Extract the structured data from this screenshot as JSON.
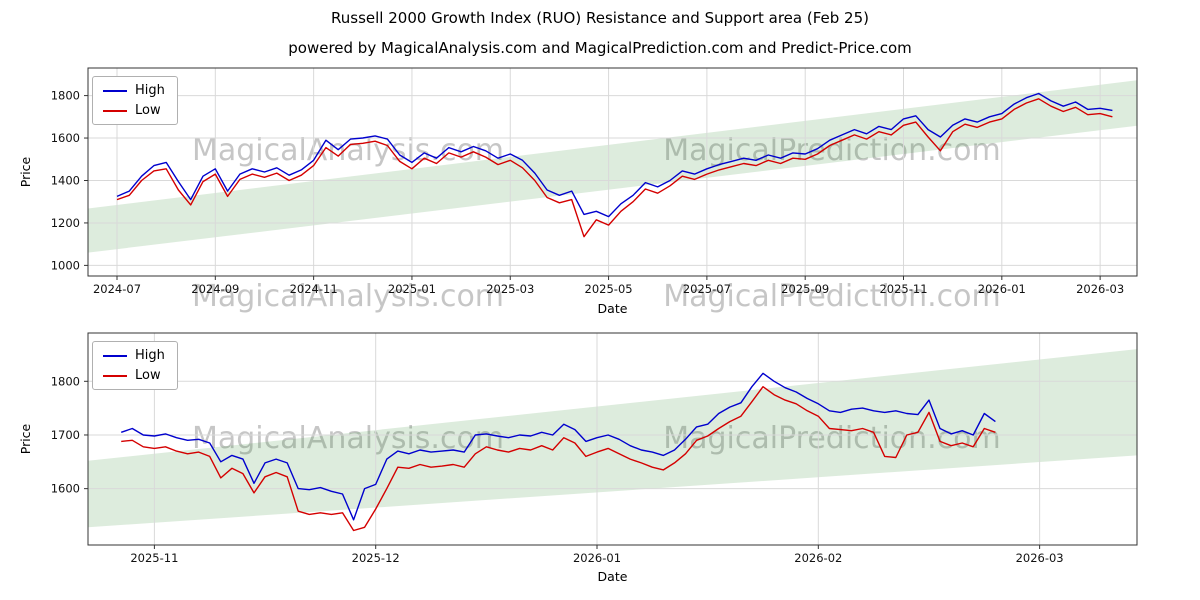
{
  "figure": {
    "suptitle": "Russell 2000 Growth Index (RUO) Resistance and Support area (Feb 25)",
    "watermark_left": "MagicalAnalysis.com",
    "watermark_right": "MagicalPrediction.com"
  },
  "chart_data": [
    {
      "type": "line",
      "title": "powered by MagicalAnalysis.com and MagicalPrediction.com and Predict-Price.com",
      "xlabel": "Date",
      "ylabel": "Price",
      "grid": true,
      "legend_position": "upper left",
      "x_unit": "months since 2024-07",
      "xlim": [
        -0.59,
        20.75
      ],
      "ylim": [
        950,
        1930
      ],
      "y_ticks": [
        1000,
        1200,
        1400,
        1600,
        1800
      ],
      "x_ticks": [
        {
          "pos": 0,
          "label": "2024-07"
        },
        {
          "pos": 2,
          "label": "2024-09"
        },
        {
          "pos": 4,
          "label": "2024-11"
        },
        {
          "pos": 6,
          "label": "2025-01"
        },
        {
          "pos": 8,
          "label": "2025-03"
        },
        {
          "pos": 10,
          "label": "2025-05"
        },
        {
          "pos": 12,
          "label": "2025-07"
        },
        {
          "pos": 14,
          "label": "2025-09"
        },
        {
          "pos": 16,
          "label": "2025-11"
        },
        {
          "pos": 18,
          "label": "2026-01"
        },
        {
          "pos": 20,
          "label": "2026-03"
        }
      ],
      "x_start": 0,
      "x_step": 0.25,
      "support_band": {
        "x": [
          -0.59,
          20.75
        ],
        "lower": [
          1060,
          1658
        ],
        "upper": [
          1268,
          1872
        ],
        "color": "#2e8b2e",
        "opacity": 0.16
      },
      "series": [
        {
          "name": "High",
          "color": "#0000cd",
          "values": [
            1325,
            1350,
            1420,
            1470,
            1485,
            1395,
            1310,
            1420,
            1455,
            1350,
            1430,
            1455,
            1440,
            1460,
            1425,
            1450,
            1495,
            1590,
            1545,
            1595,
            1600,
            1610,
            1595,
            1520,
            1485,
            1530,
            1505,
            1555,
            1535,
            1560,
            1540,
            1505,
            1525,
            1495,
            1435,
            1355,
            1330,
            1350,
            1240,
            1255,
            1230,
            1290,
            1330,
            1390,
            1370,
            1400,
            1445,
            1430,
            1455,
            1475,
            1490,
            1505,
            1495,
            1520,
            1505,
            1530,
            1525,
            1550,
            1590,
            1615,
            1640,
            1620,
            1655,
            1640,
            1690,
            1705,
            1640,
            1605,
            1660,
            1690,
            1675,
            1700,
            1715,
            1760,
            1790,
            1810,
            1775,
            1750,
            1770,
            1735,
            1740,
            1730
          ]
        },
        {
          "name": "Low",
          "color": "#d40000",
          "values": [
            1310,
            1330,
            1400,
            1445,
            1455,
            1355,
            1285,
            1395,
            1430,
            1325,
            1405,
            1430,
            1415,
            1435,
            1400,
            1425,
            1470,
            1555,
            1515,
            1570,
            1575,
            1585,
            1565,
            1490,
            1455,
            1505,
            1480,
            1530,
            1510,
            1535,
            1510,
            1475,
            1495,
            1460,
            1400,
            1320,
            1295,
            1310,
            1135,
            1215,
            1190,
            1255,
            1300,
            1360,
            1340,
            1375,
            1420,
            1405,
            1430,
            1450,
            1465,
            1480,
            1470,
            1495,
            1480,
            1505,
            1500,
            1525,
            1565,
            1590,
            1615,
            1595,
            1630,
            1615,
            1660,
            1675,
            1605,
            1540,
            1630,
            1665,
            1650,
            1675,
            1690,
            1735,
            1765,
            1785,
            1750,
            1725,
            1745,
            1710,
            1715,
            1700
          ]
        }
      ]
    },
    {
      "type": "line",
      "title": "",
      "xlabel": "Date",
      "ylabel": "Price",
      "grid": true,
      "legend_position": "upper left",
      "x_unit": "months since 2025-11",
      "xlim": [
        -0.3,
        4.44
      ],
      "ylim": [
        1495,
        1890
      ],
      "y_ticks": [
        1600,
        1700,
        1800
      ],
      "x_ticks": [
        {
          "pos": 0,
          "label": "2025-11"
        },
        {
          "pos": 1,
          "label": "2025-12"
        },
        {
          "pos": 2,
          "label": "2026-01"
        },
        {
          "pos": 3,
          "label": "2026-02"
        },
        {
          "pos": 4,
          "label": "2026-03"
        }
      ],
      "x_start": -0.15,
      "x_step": 0.05,
      "support_band": {
        "x": [
          -0.3,
          4.44
        ],
        "lower": [
          1528,
          1662
        ],
        "upper": [
          1652,
          1860
        ],
        "color": "#2e8b2e",
        "opacity": 0.16
      },
      "series": [
        {
          "name": "High",
          "color": "#0000cd",
          "values": [
            1705,
            1712,
            1700,
            1698,
            1702,
            1695,
            1690,
            1692,
            1685,
            1650,
            1662,
            1655,
            1610,
            1648,
            1655,
            1648,
            1600,
            1598,
            1602,
            1595,
            1590,
            1542,
            1600,
            1608,
            1655,
            1670,
            1665,
            1672,
            1668,
            1670,
            1672,
            1668,
            1700,
            1702,
            1698,
            1695,
            1700,
            1698,
            1705,
            1700,
            1720,
            1710,
            1688,
            1695,
            1700,
            1692,
            1680,
            1672,
            1668,
            1662,
            1672,
            1692,
            1715,
            1720,
            1740,
            1752,
            1760,
            1790,
            1815,
            1800,
            1788,
            1780,
            1768,
            1758,
            1745,
            1742,
            1748,
            1750,
            1745,
            1742,
            1745,
            1740,
            1738,
            1765,
            1712,
            1702,
            1708,
            1700,
            1740,
            1725
          ]
        },
        {
          "name": "Low",
          "color": "#d40000",
          "values": [
            1688,
            1690,
            1678,
            1675,
            1678,
            1670,
            1665,
            1668,
            1660,
            1620,
            1638,
            1628,
            1592,
            1622,
            1630,
            1622,
            1558,
            1552,
            1555,
            1552,
            1555,
            1522,
            1528,
            1562,
            1600,
            1640,
            1638,
            1645,
            1640,
            1642,
            1645,
            1640,
            1665,
            1678,
            1672,
            1668,
            1675,
            1672,
            1680,
            1672,
            1695,
            1685,
            1660,
            1668,
            1675,
            1665,
            1655,
            1648,
            1640,
            1635,
            1648,
            1665,
            1690,
            1698,
            1712,
            1725,
            1735,
            1762,
            1790,
            1775,
            1765,
            1758,
            1745,
            1735,
            1712,
            1710,
            1708,
            1712,
            1705,
            1660,
            1658,
            1700,
            1705,
            1742,
            1688,
            1680,
            1685,
            1678,
            1712,
            1705
          ]
        }
      ]
    }
  ]
}
